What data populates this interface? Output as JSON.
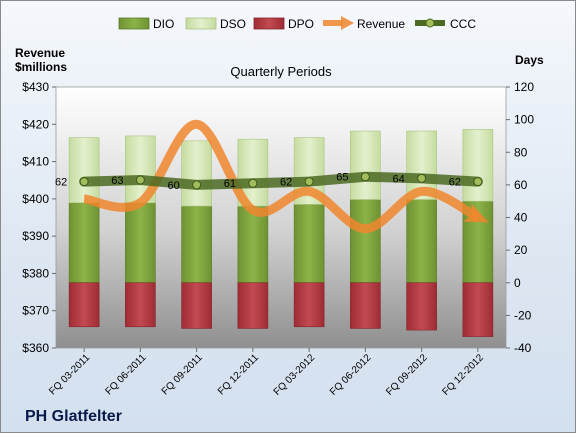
{
  "chart_data": {
    "type": "bar",
    "title": "Quarterly Periods",
    "company": "PH Glatfelter",
    "left_axis_label": [
      "Revenue",
      "$millions"
    ],
    "right_axis_label": "Days",
    "categories": [
      "FQ 03-2011",
      "FQ 06-2011",
      "FQ 09-2011",
      "FQ 12-2011",
      "FQ 03-2012",
      "FQ 06-2012",
      "FQ 09-2012",
      "FQ 12-2012"
    ],
    "left_axis": {
      "min": 360,
      "max": 430,
      "step": 10,
      "prefix": "$"
    },
    "right_axis": {
      "min": -40,
      "max": 120,
      "step": 20
    },
    "series": [
      {
        "name": "DIO",
        "axis": "right",
        "kind": "stacked-bar",
        "values": [
          49,
          49,
          47,
          47,
          48,
          51,
          51,
          50
        ],
        "color": "#7ea13a"
      },
      {
        "name": "DSO",
        "axis": "right",
        "kind": "stacked-bar",
        "values": [
          40,
          41,
          40,
          41,
          41,
          42,
          42,
          44
        ],
        "color": "#d6e7b3"
      },
      {
        "name": "DPO",
        "axis": "right",
        "kind": "stacked-bar",
        "values": [
          -27,
          -27,
          -28,
          -28,
          -27,
          -28,
          -29,
          -33
        ],
        "color": "#b5363f"
      },
      {
        "name": "Revenue",
        "axis": "left",
        "kind": "arrow-line",
        "values": [
          400,
          399,
          420,
          397,
          402,
          392,
          402,
          395
        ],
        "color": "#f0862e"
      },
      {
        "name": "CCC",
        "axis": "right",
        "kind": "line",
        "values": [
          62,
          63,
          60,
          61,
          62,
          65,
          64,
          62
        ],
        "labels": [
          "62",
          "63",
          "60",
          "61",
          "62",
          "65",
          "64",
          "62"
        ],
        "color": "#4b6a22"
      }
    ],
    "legend": [
      "DIO",
      "DSO",
      "DPO",
      "Revenue",
      "CCC"
    ],
    "legend_position": "top",
    "grid": false
  }
}
